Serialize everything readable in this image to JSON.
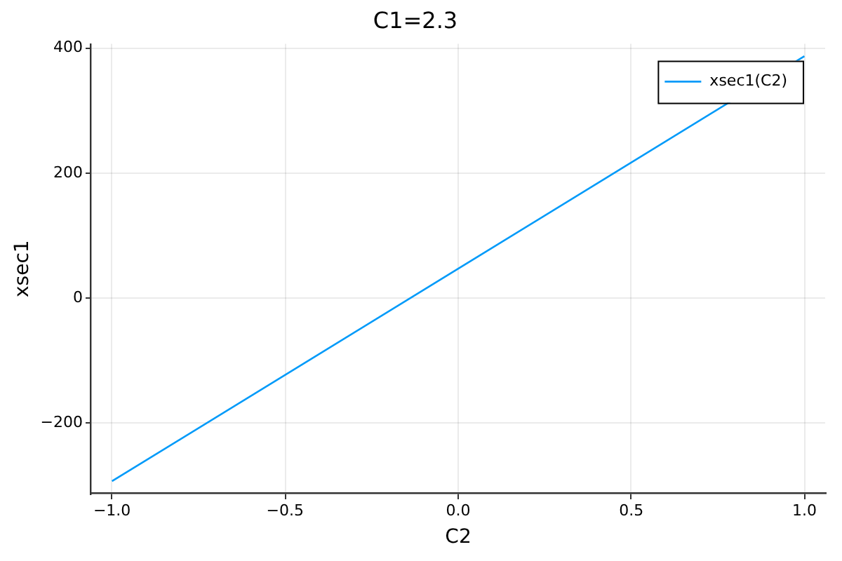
{
  "chart_data": {
    "type": "line",
    "title": "C1=2.3",
    "xlabel": "C2",
    "ylabel": "xsec1",
    "x": [
      -1,
      0,
      1
    ],
    "series": [
      {
        "name": "xsec1(C2)",
        "color": "#009af9",
        "values": [
          -293,
          47,
          387
        ]
      }
    ],
    "xlim": [
      -1.06,
      1.06
    ],
    "xticks": [
      {
        "value": -1,
        "label": "−1.0"
      },
      {
        "value": -0.5,
        "label": "−0.5"
      },
      {
        "value": 0,
        "label": "0.0"
      },
      {
        "value": 0.5,
        "label": "0.5"
      },
      {
        "value": 1,
        "label": "1.0"
      }
    ],
    "ylim": [
      -313,
      407
    ],
    "yticks": [
      {
        "value": -200,
        "label": "−200"
      },
      0,
      200,
      400
    ],
    "grid": true,
    "legend": "top right"
  }
}
